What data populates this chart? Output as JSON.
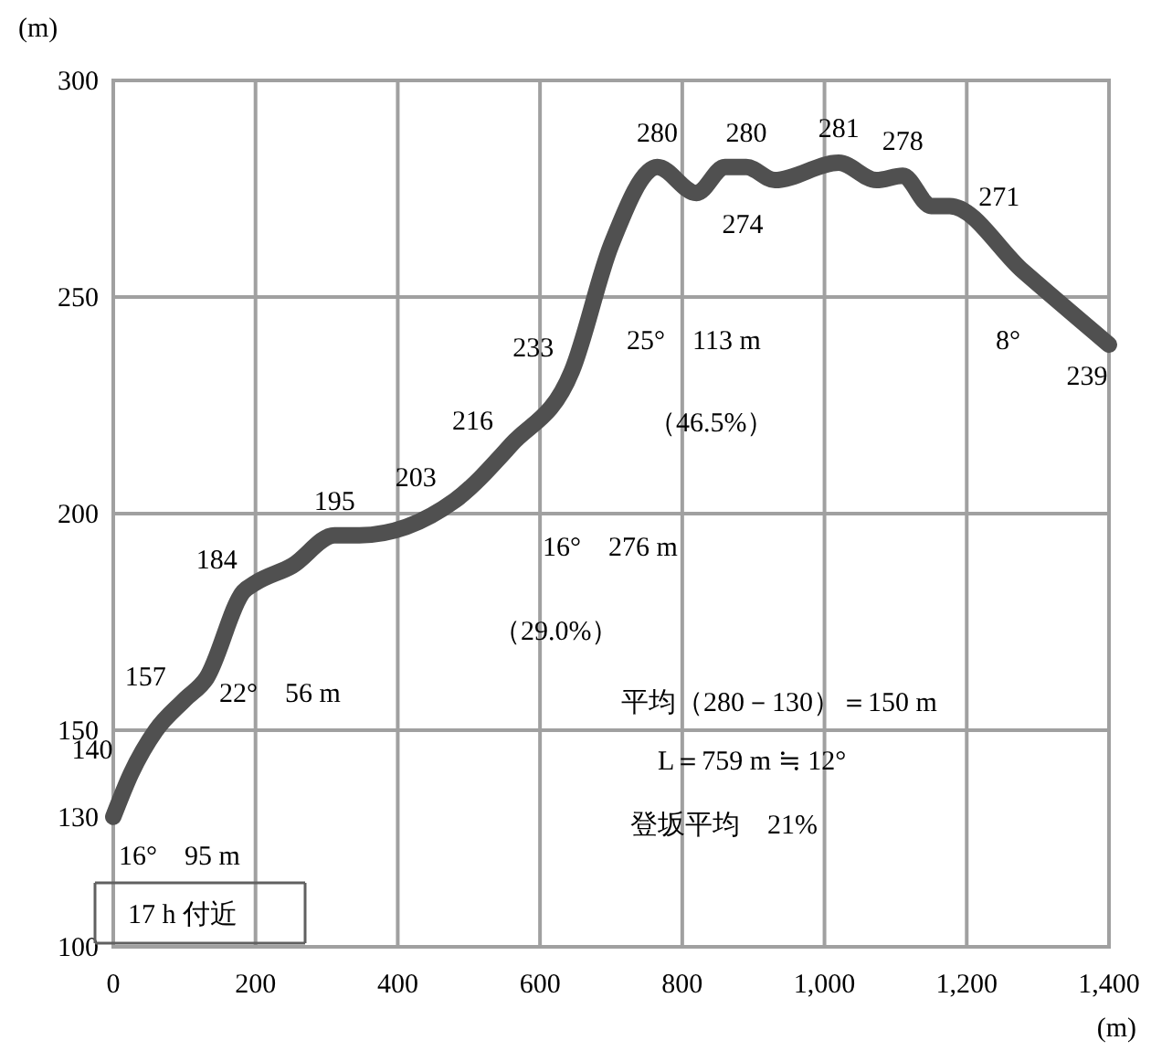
{
  "chart_data": {
    "type": "line",
    "xlabel": "(m)",
    "ylabel": "(m)",
    "x": [
      0,
      25,
      60,
      100,
      131,
      183,
      200,
      252,
      311,
      346,
      480,
      560,
      645,
      700,
      765,
      820,
      860,
      890,
      930,
      1020,
      1073,
      1110,
      1150,
      1176,
      1279,
      1400
    ],
    "series": [
      {
        "color": "#505050",
        "values": [
          130,
          140,
          150,
          157,
          162,
          182,
          184,
          188,
          195,
          195,
          203,
          216,
          233,
          262,
          280,
          274,
          280,
          280,
          277,
          281,
          277,
          278,
          271,
          271,
          256,
          239
        ],
        "value_labels": [
          "130",
          "140",
          null,
          "157",
          null,
          null,
          "184",
          null,
          "195",
          null,
          "203",
          "216",
          "233",
          null,
          "280",
          "274",
          null,
          "280",
          null,
          "281",
          null,
          "278",
          "271",
          null,
          null,
          "239"
        ]
      }
    ],
    "xlim": [
      0,
      1400
    ],
    "ylim": [
      100,
      300
    ],
    "xticks": [
      0,
      200,
      400,
      600,
      800,
      {
        "value": 1000,
        "label": "1,000"
      },
      {
        "value": 1200,
        "label": "1,200"
      },
      {
        "value": 1400,
        "label": "1,400"
      }
    ],
    "yticks": [
      100,
      150,
      200,
      250,
      300
    ],
    "grid": true,
    "marker": "none",
    "line_style": "solid",
    "annotations": [
      "16°　95 m",
      "17 h 付近",
      "22°　56 m",
      "16°　276 m",
      "（29.0%）",
      "25°　113 m",
      "（46.5%）",
      "8°",
      "平均（280－130）＝150 m",
      "L＝759 m ≒ 12°",
      "登坂平均　21%"
    ]
  }
}
